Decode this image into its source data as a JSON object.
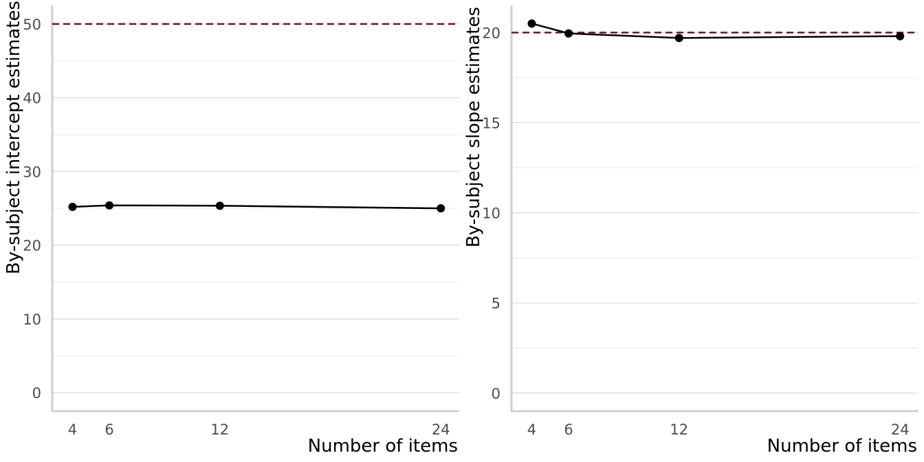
{
  "chart_data": [
    {
      "type": "line",
      "xlabel": "Number of items",
      "ylabel": "By-subject intercept estimates",
      "xlim": [
        2.9,
        25.0
      ],
      "ylim": [
        -2.5,
        52.5
      ],
      "x_ticks": [
        4,
        6,
        12,
        24
      ],
      "y_ticks": [
        0,
        10,
        20,
        30,
        40,
        50
      ],
      "y_minor": [
        5,
        15,
        25,
        35,
        45
      ],
      "grid": true,
      "legend": "none",
      "series": [
        {
          "x": [
            4,
            6,
            12,
            24
          ],
          "values": [
            25.2,
            25.4,
            25.35,
            25.0
          ],
          "color": "#000000"
        }
      ],
      "reference_line": {
        "y": 50,
        "style": "dashed",
        "color": "#6e0f3e"
      }
    },
    {
      "type": "line",
      "xlabel": "Number of items",
      "ylabel": "By-subject slope estimates",
      "xlim": [
        2.9,
        25.0
      ],
      "ylim": [
        -1.0,
        21.5
      ],
      "x_ticks": [
        4,
        6,
        12,
        24
      ],
      "y_ticks": [
        0,
        5,
        10,
        15,
        20
      ],
      "y_minor": [
        2.5,
        7.5,
        12.5,
        17.5
      ],
      "grid": true,
      "legend": "none",
      "series": [
        {
          "x": [
            4,
            6,
            12,
            24
          ],
          "values": [
            20.5,
            19.95,
            19.7,
            19.8
          ],
          "color": "#000000"
        }
      ],
      "reference_line": {
        "y": 20,
        "style": "dashed",
        "color": "#6e0f3e"
      }
    }
  ]
}
